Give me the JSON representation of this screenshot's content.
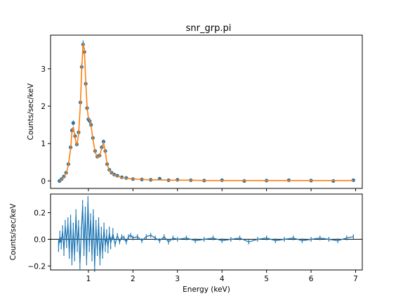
{
  "chart_data": [
    {
      "type": "scatter",
      "title": "snr_grp.pi",
      "xlabel": "",
      "ylabel": "Counts/sec/keV",
      "xlim": [
        0.15,
        7.15
      ],
      "ylim": [
        -0.2,
        3.9
      ],
      "x_ticks": [
        1,
        2,
        3,
        4,
        5,
        6,
        7
      ],
      "y_ticks": [
        0,
        1,
        2,
        3
      ],
      "y_tick_labels": [
        "0",
        "1",
        "2",
        "3"
      ],
      "grid": false,
      "legend": "none",
      "series": [
        {
          "role": "data",
          "color": "#1f77b4",
          "x": [
            0.35,
            0.4,
            0.45,
            0.5,
            0.55,
            0.6,
            0.63,
            0.66,
            0.7,
            0.74,
            0.78,
            0.82,
            0.85,
            0.88,
            0.91,
            0.94,
            0.97,
            1.0,
            1.03,
            1.06,
            1.1,
            1.15,
            1.2,
            1.25,
            1.3,
            1.34,
            1.38,
            1.42,
            1.47,
            1.52,
            1.58,
            1.65,
            1.75,
            1.85,
            2.0,
            2.2,
            2.4,
            2.6,
            2.8,
            3.0,
            3.3,
            3.6,
            4.0,
            4.5,
            5.0,
            5.5,
            6.0,
            6.5,
            6.95
          ],
          "y": [
            0.0,
            0.05,
            0.12,
            0.22,
            0.45,
            0.9,
            1.35,
            1.55,
            1.2,
            0.98,
            1.3,
            2.1,
            3.05,
            3.65,
            3.45,
            2.6,
            1.95,
            1.65,
            1.6,
            1.5,
            1.15,
            0.8,
            0.65,
            0.68,
            0.9,
            1.05,
            0.8,
            0.45,
            0.3,
            0.22,
            0.17,
            0.14,
            0.1,
            0.08,
            0.05,
            0.04,
            0.03,
            0.06,
            0.02,
            0.03,
            0.02,
            0.01,
            0.02,
            0.0,
            0.01,
            0.02,
            0.01,
            0.0,
            0.02
          ]
        },
        {
          "role": "model",
          "color": "#ff7f0e",
          "x": [
            0.35,
            0.4,
            0.45,
            0.5,
            0.55,
            0.6,
            0.63,
            0.66,
            0.7,
            0.74,
            0.78,
            0.82,
            0.85,
            0.88,
            0.91,
            0.94,
            0.97,
            1.0,
            1.03,
            1.06,
            1.1,
            1.15,
            1.2,
            1.25,
            1.3,
            1.34,
            1.38,
            1.42,
            1.47,
            1.52,
            1.58,
            1.65,
            1.75,
            1.85,
            2.0,
            2.2,
            2.4,
            2.6,
            2.8,
            3.0,
            3.3,
            3.6,
            4.0,
            4.5,
            5.0,
            5.5,
            6.0,
            6.5,
            6.95
          ],
          "y": [
            0.0,
            0.04,
            0.1,
            0.2,
            0.42,
            0.85,
            1.3,
            1.45,
            1.15,
            0.95,
            1.25,
            2.05,
            3.0,
            3.68,
            3.5,
            2.65,
            1.98,
            1.68,
            1.62,
            1.48,
            1.12,
            0.78,
            0.63,
            0.66,
            0.88,
            1.02,
            0.78,
            0.44,
            0.29,
            0.21,
            0.16,
            0.13,
            0.09,
            0.07,
            0.05,
            0.04,
            0.03,
            0.03,
            0.02,
            0.02,
            0.02,
            0.01,
            0.01,
            0.01,
            0.01,
            0.01,
            0.01,
            0.01,
            0.01
          ]
        }
      ]
    },
    {
      "type": "line",
      "title": "",
      "xlabel": "Energy (keV)",
      "ylabel": "Counts/sec/keV",
      "xlim": [
        0.15,
        7.15
      ],
      "ylim": [
        -0.23,
        0.34
      ],
      "x_ticks": [
        1,
        2,
        3,
        4,
        5,
        6,
        7
      ],
      "x_tick_labels": [
        "1",
        "2",
        "3",
        "4",
        "5",
        "6",
        "7"
      ],
      "y_ticks": [
        -0.2,
        0.0,
        0.2
      ],
      "y_tick_labels": [
        "−0.2",
        "0.0",
        "0.2"
      ],
      "reference_line_y": 0,
      "grid": false,
      "legend": "none",
      "series": [
        {
          "role": "residuals",
          "color": "#1f77b4",
          "x": [
            0.33,
            0.36,
            0.39,
            0.42,
            0.45,
            0.48,
            0.51,
            0.54,
            0.57,
            0.6,
            0.63,
            0.66,
            0.69,
            0.72,
            0.75,
            0.78,
            0.81,
            0.84,
            0.87,
            0.9,
            0.93,
            0.96,
            0.99,
            1.02,
            1.05,
            1.08,
            1.11,
            1.14,
            1.17,
            1.2,
            1.23,
            1.26,
            1.29,
            1.32,
            1.35,
            1.38,
            1.41,
            1.44,
            1.47,
            1.5,
            1.55,
            1.6,
            1.65,
            1.7,
            1.75,
            1.8,
            1.85,
            1.9,
            1.95,
            2.0,
            2.1,
            2.2,
            2.3,
            2.4,
            2.5,
            2.6,
            2.7,
            2.8,
            2.9,
            3.0,
            3.2,
            3.4,
            3.6,
            3.8,
            4.0,
            4.2,
            4.4,
            4.6,
            4.8,
            5.0,
            5.2,
            5.4,
            5.6,
            5.8,
            6.0,
            6.2,
            6.4,
            6.6,
            6.8,
            6.95
          ],
          "y": [
            -0.05,
            0.02,
            -0.03,
            0.06,
            -0.08,
            0.1,
            -0.02,
            0.12,
            -0.1,
            0.14,
            -0.15,
            0.08,
            -0.12,
            0.18,
            -0.05,
            0.1,
            -0.18,
            0.05,
            0.25,
            -0.08,
            0.2,
            -0.15,
            0.28,
            -0.05,
            0.15,
            -0.12,
            0.18,
            -0.2,
            0.1,
            -0.08,
            0.12,
            -0.15,
            0.05,
            -0.1,
            0.08,
            -0.05,
            0.03,
            -0.06,
            0.05,
            -0.03,
            0.04,
            -0.04,
            0.03,
            -0.02,
            0.02,
            0.01,
            -0.02,
            0.02,
            0.03,
            0.01,
            0.02,
            -0.01,
            0.02,
            0.03,
            0.01,
            -0.01,
            0.02,
            -0.02,
            0.01,
            0.0,
            0.01,
            -0.01,
            0.0,
            0.01,
            -0.01,
            0.0,
            0.01,
            -0.02,
            0.0,
            0.01,
            -0.01,
            0.0,
            0.01,
            -0.01,
            0.0,
            0.01,
            0.0,
            -0.01,
            0.01,
            0.02
          ]
        }
      ]
    }
  ]
}
